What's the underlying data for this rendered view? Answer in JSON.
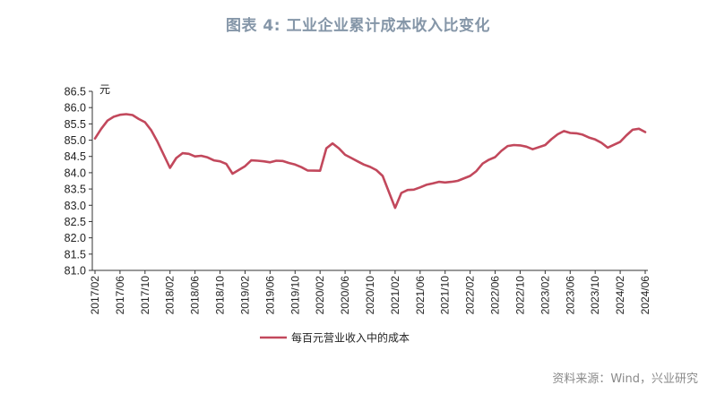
{
  "title": "图表 4:  工业企业累计成本收入比变化",
  "source": "资料来源：Wind，兴业研究",
  "colors": {
    "series": "#c2485c",
    "title": "#8596a8",
    "axis": "#333333"
  },
  "chart_data": {
    "type": "line",
    "ylabel": "元",
    "ylim": [
      81.0,
      86.5
    ],
    "yticks": [
      "81.0",
      "81.5",
      "82.0",
      "82.5",
      "83.0",
      "83.5",
      "84.0",
      "84.5",
      "85.0",
      "85.5",
      "86.0",
      "86.5"
    ],
    "xticks": [
      "2017/02",
      "2017/06",
      "2017/10",
      "2018/02",
      "2018/06",
      "2018/10",
      "2019/02",
      "2019/06",
      "2019/10",
      "2020/02",
      "2020/06",
      "2020/10",
      "2021/02",
      "2021/06",
      "2021/10",
      "2022/02",
      "2022/06",
      "2022/10",
      "2023/02",
      "2023/06",
      "2023/10",
      "2024/02",
      "2024/06"
    ],
    "grid": false,
    "legend_position": "bottom",
    "series": [
      {
        "name": "每百元营业收入中的成本",
        "x": [
          "2017/02",
          "2017/03",
          "2017/04",
          "2017/05",
          "2017/06",
          "2017/07",
          "2017/08",
          "2017/09",
          "2017/10",
          "2017/11",
          "2017/12",
          "2018/02",
          "2018/03",
          "2018/04",
          "2018/05",
          "2018/06",
          "2018/07",
          "2018/08",
          "2018/09",
          "2018/10",
          "2018/11",
          "2018/12",
          "2019/02",
          "2019/03",
          "2019/04",
          "2019/05",
          "2019/06",
          "2019/07",
          "2019/08",
          "2019/09",
          "2019/10",
          "2019/11",
          "2019/12",
          "2020/02",
          "2020/03",
          "2020/04",
          "2020/05",
          "2020/06",
          "2020/07",
          "2020/08",
          "2020/09",
          "2020/10",
          "2020/11",
          "2020/12",
          "2021/02",
          "2021/03",
          "2021/04",
          "2021/05",
          "2021/06",
          "2021/07",
          "2021/08",
          "2021/09",
          "2021/10",
          "2021/11",
          "2021/12",
          "2022/02",
          "2022/03",
          "2022/04",
          "2022/05",
          "2022/06",
          "2022/07",
          "2022/08",
          "2022/09",
          "2022/10",
          "2022/11",
          "2022/12",
          "2023/02",
          "2023/03",
          "2023/04",
          "2023/05",
          "2023/06",
          "2023/07",
          "2023/08",
          "2023/09",
          "2023/10",
          "2023/11",
          "2023/12",
          "2024/02",
          "2024/03",
          "2024/04",
          "2024/05",
          "2024/06"
        ],
        "values": [
          85.05,
          85.35,
          85.6,
          85.72,
          85.78,
          85.8,
          85.77,
          85.65,
          85.55,
          85.3,
          84.95,
          84.15,
          84.45,
          84.6,
          84.58,
          84.5,
          84.52,
          84.47,
          84.38,
          84.35,
          84.27,
          83.97,
          84.2,
          84.38,
          84.37,
          84.35,
          84.32,
          84.37,
          84.36,
          84.3,
          84.25,
          84.17,
          84.07,
          84.06,
          84.75,
          84.9,
          84.75,
          84.55,
          84.45,
          84.35,
          84.25,
          84.18,
          84.08,
          83.9,
          82.92,
          83.38,
          83.47,
          83.48,
          83.55,
          83.63,
          83.67,
          83.72,
          83.7,
          83.72,
          83.75,
          83.9,
          84.05,
          84.28,
          84.4,
          84.48,
          84.67,
          84.82,
          84.85,
          84.84,
          84.8,
          84.72,
          84.85,
          85.03,
          85.18,
          85.28,
          85.22,
          85.21,
          85.17,
          85.08,
          85.02,
          84.92,
          84.77,
          84.95,
          85.15,
          85.32,
          85.35,
          85.25
        ]
      }
    ]
  }
}
